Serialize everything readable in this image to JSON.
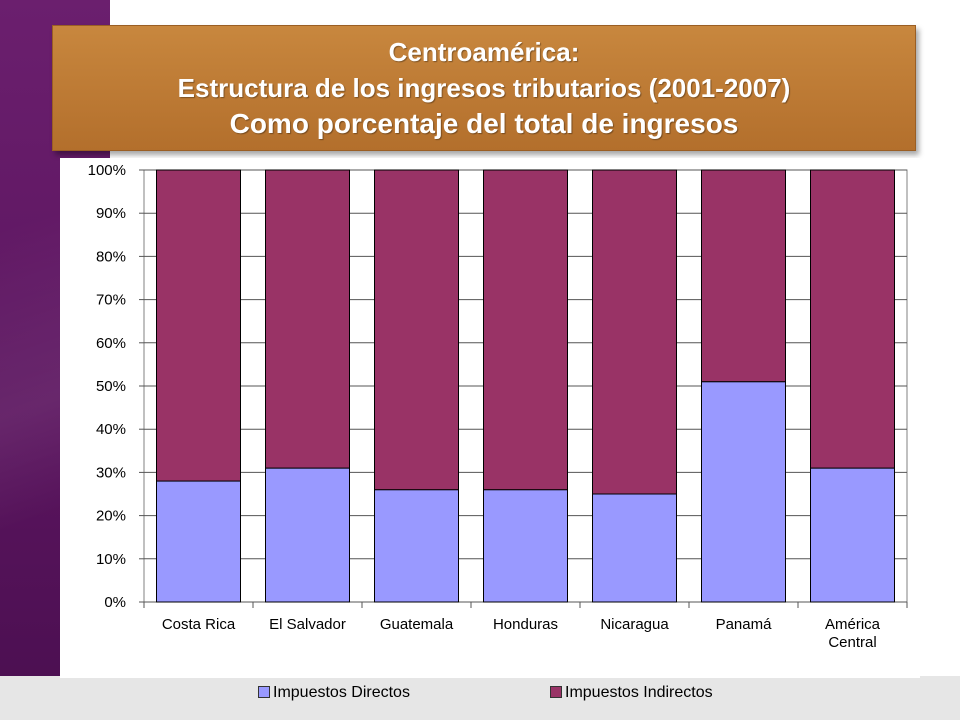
{
  "title": {
    "line1": "Centroamérica:",
    "line2": "Estructura de los ingresos tributarios (2001-2007)",
    "line3": "Como porcentaje del total de ingresos"
  },
  "colors": {
    "directos": "#9999ff",
    "indirectos": "#993366",
    "title_bg": "#b8752f"
  },
  "chart_data": {
    "type": "bar",
    "stacked": true,
    "categories": [
      "Costa Rica",
      "El Salvador",
      "Guatemala",
      "Honduras",
      "Nicaragua",
      "Panamá",
      "América Central"
    ],
    "category_lines": [
      [
        "Costa Rica"
      ],
      [
        "El Salvador"
      ],
      [
        "Guatemala"
      ],
      [
        "Honduras"
      ],
      [
        "Nicaragua"
      ],
      [
        "Panamá"
      ],
      [
        "América",
        "Central"
      ]
    ],
    "series": [
      {
        "name": "Impuestos Directos",
        "values": [
          28,
          31,
          26,
          26,
          25,
          51,
          31
        ]
      },
      {
        "name": "Impuestos Indirectos",
        "values": [
          72,
          69,
          74,
          74,
          75,
          49,
          69
        ]
      }
    ],
    "yticks": [
      "0%",
      "10%",
      "20%",
      "30%",
      "40%",
      "50%",
      "60%",
      "70%",
      "80%",
      "90%",
      "100%"
    ],
    "ylim": [
      0,
      100
    ],
    "grid": true,
    "legend_position": "bottom"
  }
}
